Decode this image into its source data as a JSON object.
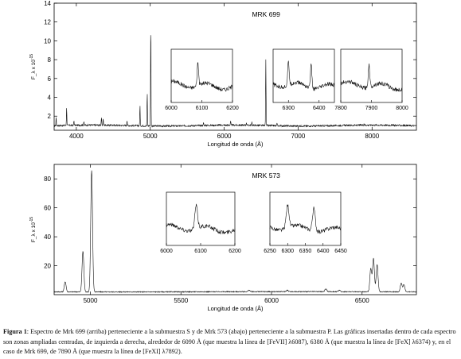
{
  "figure": {
    "caption_label": "Figura 1",
    "caption_text": ": Espectro de Mrk 699 (arriba) perteneciente a la submuestra S y de Mrk 573 (abajo) perteneciente a la submuestra P. Las gráficas insertadas dentro de cada espectro son zonas ampliadas centradas, de izquierda a derecha, alrededor de 6090 Å (que muestra la línea de [FeVII] λ6087), 6380 Å (que muestra la línea de [FeX] λ6374) y, en el caso de Mrk 699, de 7890 Å (que muestra la línea de [FeXI] λ7892)."
  },
  "chart_data": [
    {
      "type": "line",
      "title": "MRK 699",
      "xlabel": "Longitud de onda (Å)",
      "ylabel": "F_λ x 10^-15",
      "xlim": [
        3700,
        8600
      ],
      "ylim": [
        0.5,
        14
      ],
      "xticks": [
        4000,
        5000,
        6000,
        7000,
        8000
      ],
      "yticks": [
        2,
        4,
        6,
        8,
        10,
        12,
        14
      ],
      "continuum": 1.0,
      "lines": [
        {
          "x": 3727,
          "y": 1.9
        },
        {
          "x": 3869,
          "y": 2.9
        },
        {
          "x": 3968,
          "y": 1.5
        },
        {
          "x": 4102,
          "y": 1.4
        },
        {
          "x": 4340,
          "y": 1.8
        },
        {
          "x": 4363,
          "y": 1.7
        },
        {
          "x": 4686,
          "y": 1.6
        },
        {
          "x": 4861,
          "y": 3.2
        },
        {
          "x": 4959,
          "y": 4.6
        },
        {
          "x": 5007,
          "y": 12.0
        },
        {
          "x": 5721,
          "y": 1.3
        },
        {
          "x": 6087,
          "y": 1.4
        },
        {
          "x": 6300,
          "y": 1.3
        },
        {
          "x": 6374,
          "y": 1.3
        },
        {
          "x": 6563,
          "y": 8.1
        },
        {
          "x": 6716,
          "y": 1.3
        },
        {
          "x": 7892,
          "y": 1.2
        }
      ],
      "insets": [
        {
          "xlim": [
            6000,
            6200
          ],
          "xticks": [
            6000,
            6100,
            6200
          ],
          "peaks": [
            6087
          ]
        },
        {
          "xlim": [
            6250,
            6450
          ],
          "xticks": [
            6300,
            6400
          ],
          "peaks": [
            6300,
            6374
          ]
        },
        {
          "xlim": [
            7800,
            8000
          ],
          "xticks": [
            7800,
            7900,
            8000
          ],
          "peaks": [
            7892
          ]
        }
      ]
    },
    {
      "type": "line",
      "title": "MRK 573",
      "xlabel": "Longitud de onda (Å)",
      "ylabel": "F_λ x 10^-15",
      "xlim": [
        4800,
        6800
      ],
      "ylim": [
        0,
        90
      ],
      "xticks": [
        5000,
        5500,
        6000,
        6500
      ],
      "yticks": [
        20,
        40,
        60,
        80
      ],
      "continuum": 2.0,
      "lines": [
        {
          "x": 4861,
          "y": 9
        },
        {
          "x": 4959,
          "y": 30
        },
        {
          "x": 5007,
          "y": 86
        },
        {
          "x": 5876,
          "y": 3
        },
        {
          "x": 6087,
          "y": 3
        },
        {
          "x": 6300,
          "y": 4
        },
        {
          "x": 6374,
          "y": 3
        },
        {
          "x": 6548,
          "y": 18
        },
        {
          "x": 6563,
          "y": 25
        },
        {
          "x": 6583,
          "y": 21
        },
        {
          "x": 6716,
          "y": 8
        },
        {
          "x": 6731,
          "y": 7
        }
      ],
      "insets": [
        {
          "xlim": [
            6000,
            6200
          ],
          "xticks": [
            6000,
            6100,
            6200
          ],
          "peaks": [
            6087
          ]
        },
        {
          "xlim": [
            6250,
            6450
          ],
          "xticks": [
            6250,
            6300,
            6350,
            6400,
            6450
          ],
          "peaks": [
            6300,
            6374
          ]
        }
      ]
    }
  ]
}
